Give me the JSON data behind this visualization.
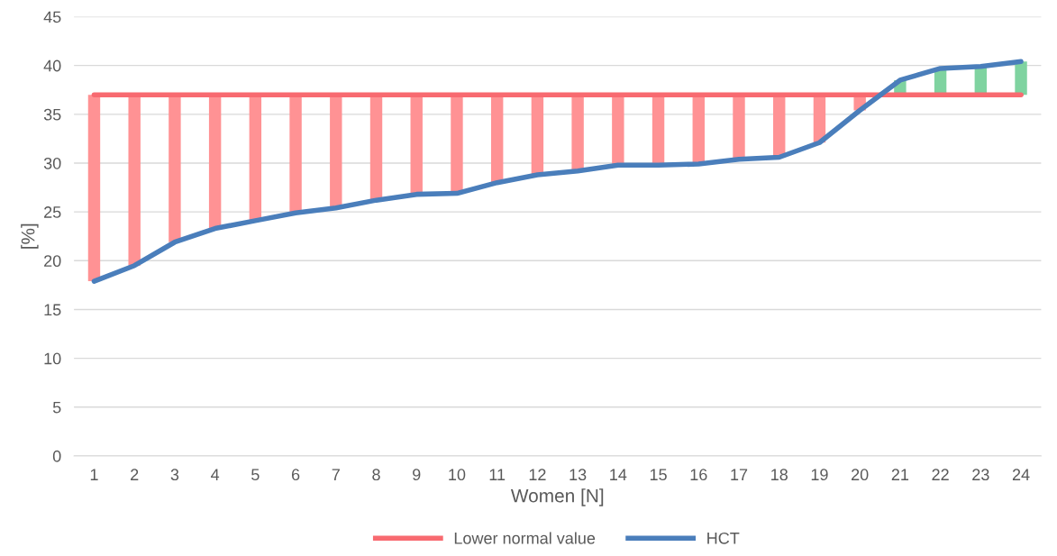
{
  "chart_data": {
    "type": "line",
    "xlabel": "Women [N]",
    "ylabel": "[%]",
    "categories": [
      "1",
      "2",
      "3",
      "4",
      "5",
      "6",
      "7",
      "8",
      "9",
      "10",
      "11",
      "12",
      "13",
      "14",
      "15",
      "16",
      "17",
      "18",
      "19",
      "20",
      "21",
      "22",
      "23",
      "24"
    ],
    "series": [
      {
        "type": "bar",
        "base": [
          17.9,
          19.5,
          21.9,
          23.3,
          24.1,
          24.9,
          25.4,
          26.2,
          26.8,
          26.9,
          28.0,
          28.8,
          29.2,
          29.8,
          29.8,
          29.9,
          30.4,
          30.6,
          32.1,
          35.4,
          38.5,
          39.7,
          39.9,
          40.4
        ],
        "values": [
          19.1,
          17.5,
          15.1,
          13.7,
          12.9,
          12.1,
          11.6,
          10.8,
          10.2,
          10.1,
          9.0,
          8.2,
          7.8,
          7.2,
          7.2,
          7.1,
          6.6,
          6.4,
          4.9,
          1.6,
          -1.5,
          -2.7,
          -2.9,
          -3.4
        ],
        "colors": [
          "#ff9294",
          "#ff9294",
          "#ff9294",
          "#ff9294",
          "#ff9294",
          "#ff9294",
          "#ff9294",
          "#ff9294",
          "#ff9294",
          "#ff9294",
          "#ff9294",
          "#ff9294",
          "#ff9294",
          "#ff9294",
          "#ff9294",
          "#ff9294",
          "#ff9294",
          "#ff9294",
          "#ff9294",
          "#ff9294",
          "#7fd3a0",
          "#7fd3a0",
          "#7fd3a0",
          "#7fd3a0"
        ]
      },
      {
        "name": "Lower normal value",
        "color": "#f86a70",
        "values": [
          37,
          37,
          37,
          37,
          37,
          37,
          37,
          37,
          37,
          37,
          37,
          37,
          37,
          37,
          37,
          37,
          37,
          37,
          37,
          37,
          37,
          37,
          37,
          37
        ]
      },
      {
        "name": "HCT",
        "color": "#4a7ebb",
        "values": [
          17.9,
          19.5,
          21.9,
          23.3,
          24.1,
          24.9,
          25.4,
          26.2,
          26.8,
          26.9,
          28.0,
          28.8,
          29.2,
          29.8,
          29.8,
          29.9,
          30.4,
          30.6,
          32.1,
          35.4,
          38.5,
          39.7,
          39.9,
          40.4
        ]
      }
    ],
    "ylim": [
      0,
      45
    ],
    "yticks": [
      0,
      5,
      10,
      15,
      20,
      25,
      30,
      35,
      40,
      45
    ],
    "grid": "y",
    "legend": "bottom"
  }
}
